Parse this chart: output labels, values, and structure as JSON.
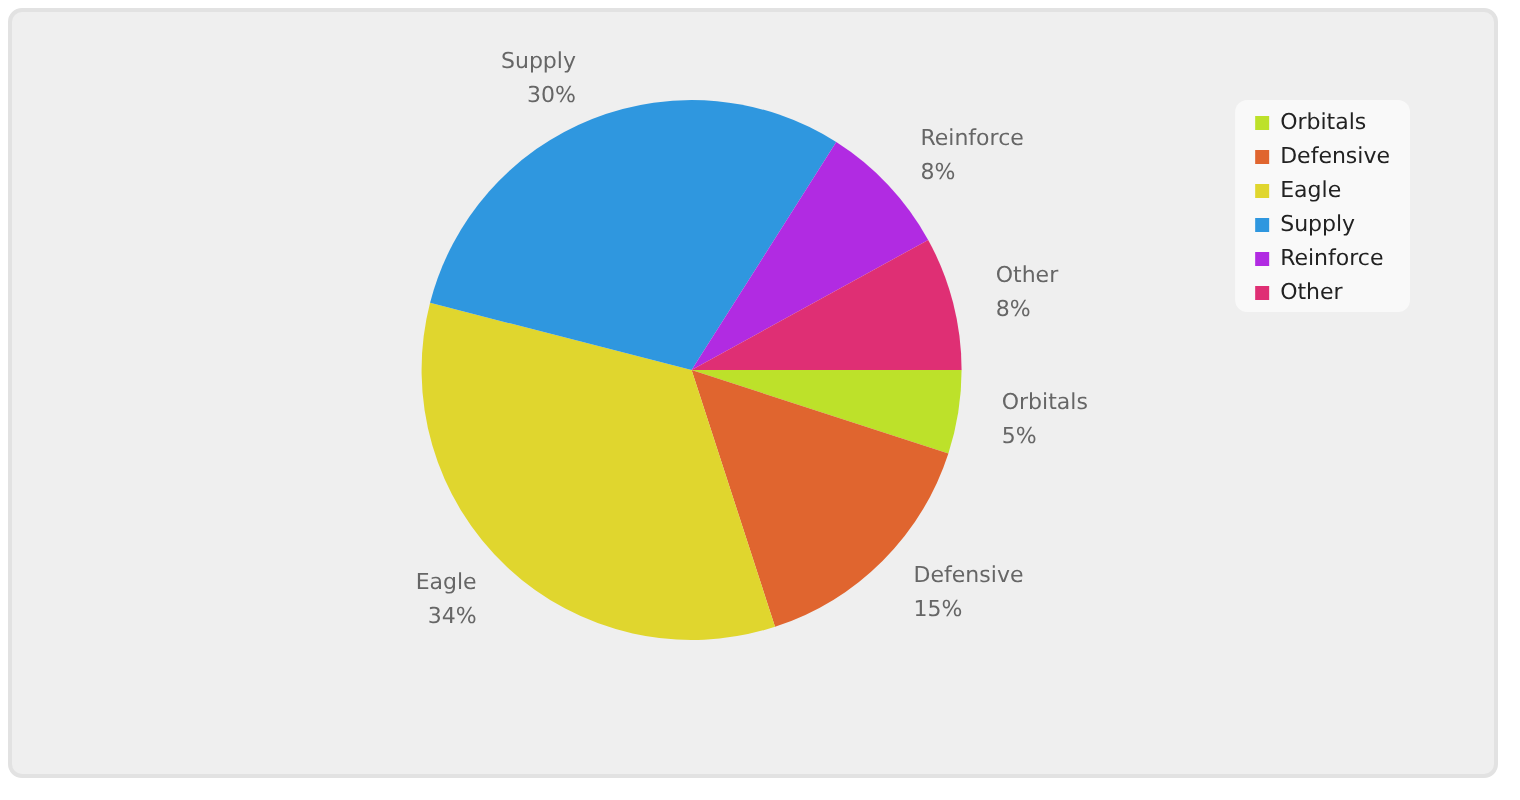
{
  "chart_data": {
    "type": "pie",
    "categories": [
      "Orbitals",
      "Defensive",
      "Eagle",
      "Supply",
      "Reinforce",
      "Other"
    ],
    "values": [
      5,
      15,
      34,
      30,
      8,
      8
    ],
    "value_labels": [
      "5%",
      "15%",
      "34%",
      "30%",
      "8%",
      "8%"
    ],
    "colors": [
      "#bde12a",
      "#e0652f",
      "#e0d62e",
      "#2f97df",
      "#b12be2",
      "#df2f74"
    ],
    "legend": "top right"
  }
}
